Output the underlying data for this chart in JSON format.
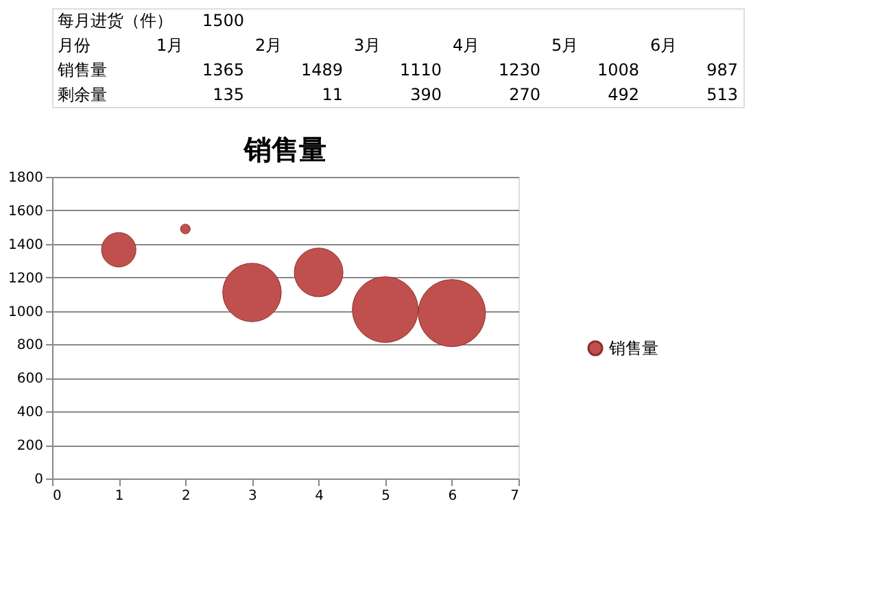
{
  "chart_data": {
    "type": "bubble",
    "title": "销售量",
    "x": [
      1,
      2,
      3,
      4,
      5,
      6
    ],
    "series": [
      {
        "name": "销售量",
        "color": "#c0504d",
        "values": [
          1365,
          1489,
          1110,
          1230,
          1008,
          987
        ],
        "sizes": [
          0.263,
          0.021,
          0.76,
          0.526,
          0.959,
          1
        ]
      }
    ],
    "xlim": [
      0,
      7
    ],
    "xticks": [
      0,
      1,
      2,
      3,
      4,
      5,
      6,
      7
    ],
    "ylim": [
      0,
      1800
    ],
    "yticks": [
      0,
      200,
      400,
      600,
      800,
      1000,
      1200,
      1400,
      1600,
      1800
    ],
    "grid": "y",
    "legend": "right",
    "annotations": [
      "每月进货（件）",
      "1500",
      "月份",
      "销售量",
      "剩余量",
      "1月",
      "2月",
      "3月",
      "4月",
      "5月",
      "6月",
      "1365",
      "1489",
      "1110",
      "1230",
      "1008",
      "987",
      "135",
      "11",
      "390",
      "270",
      "492",
      "513"
    ]
  }
}
